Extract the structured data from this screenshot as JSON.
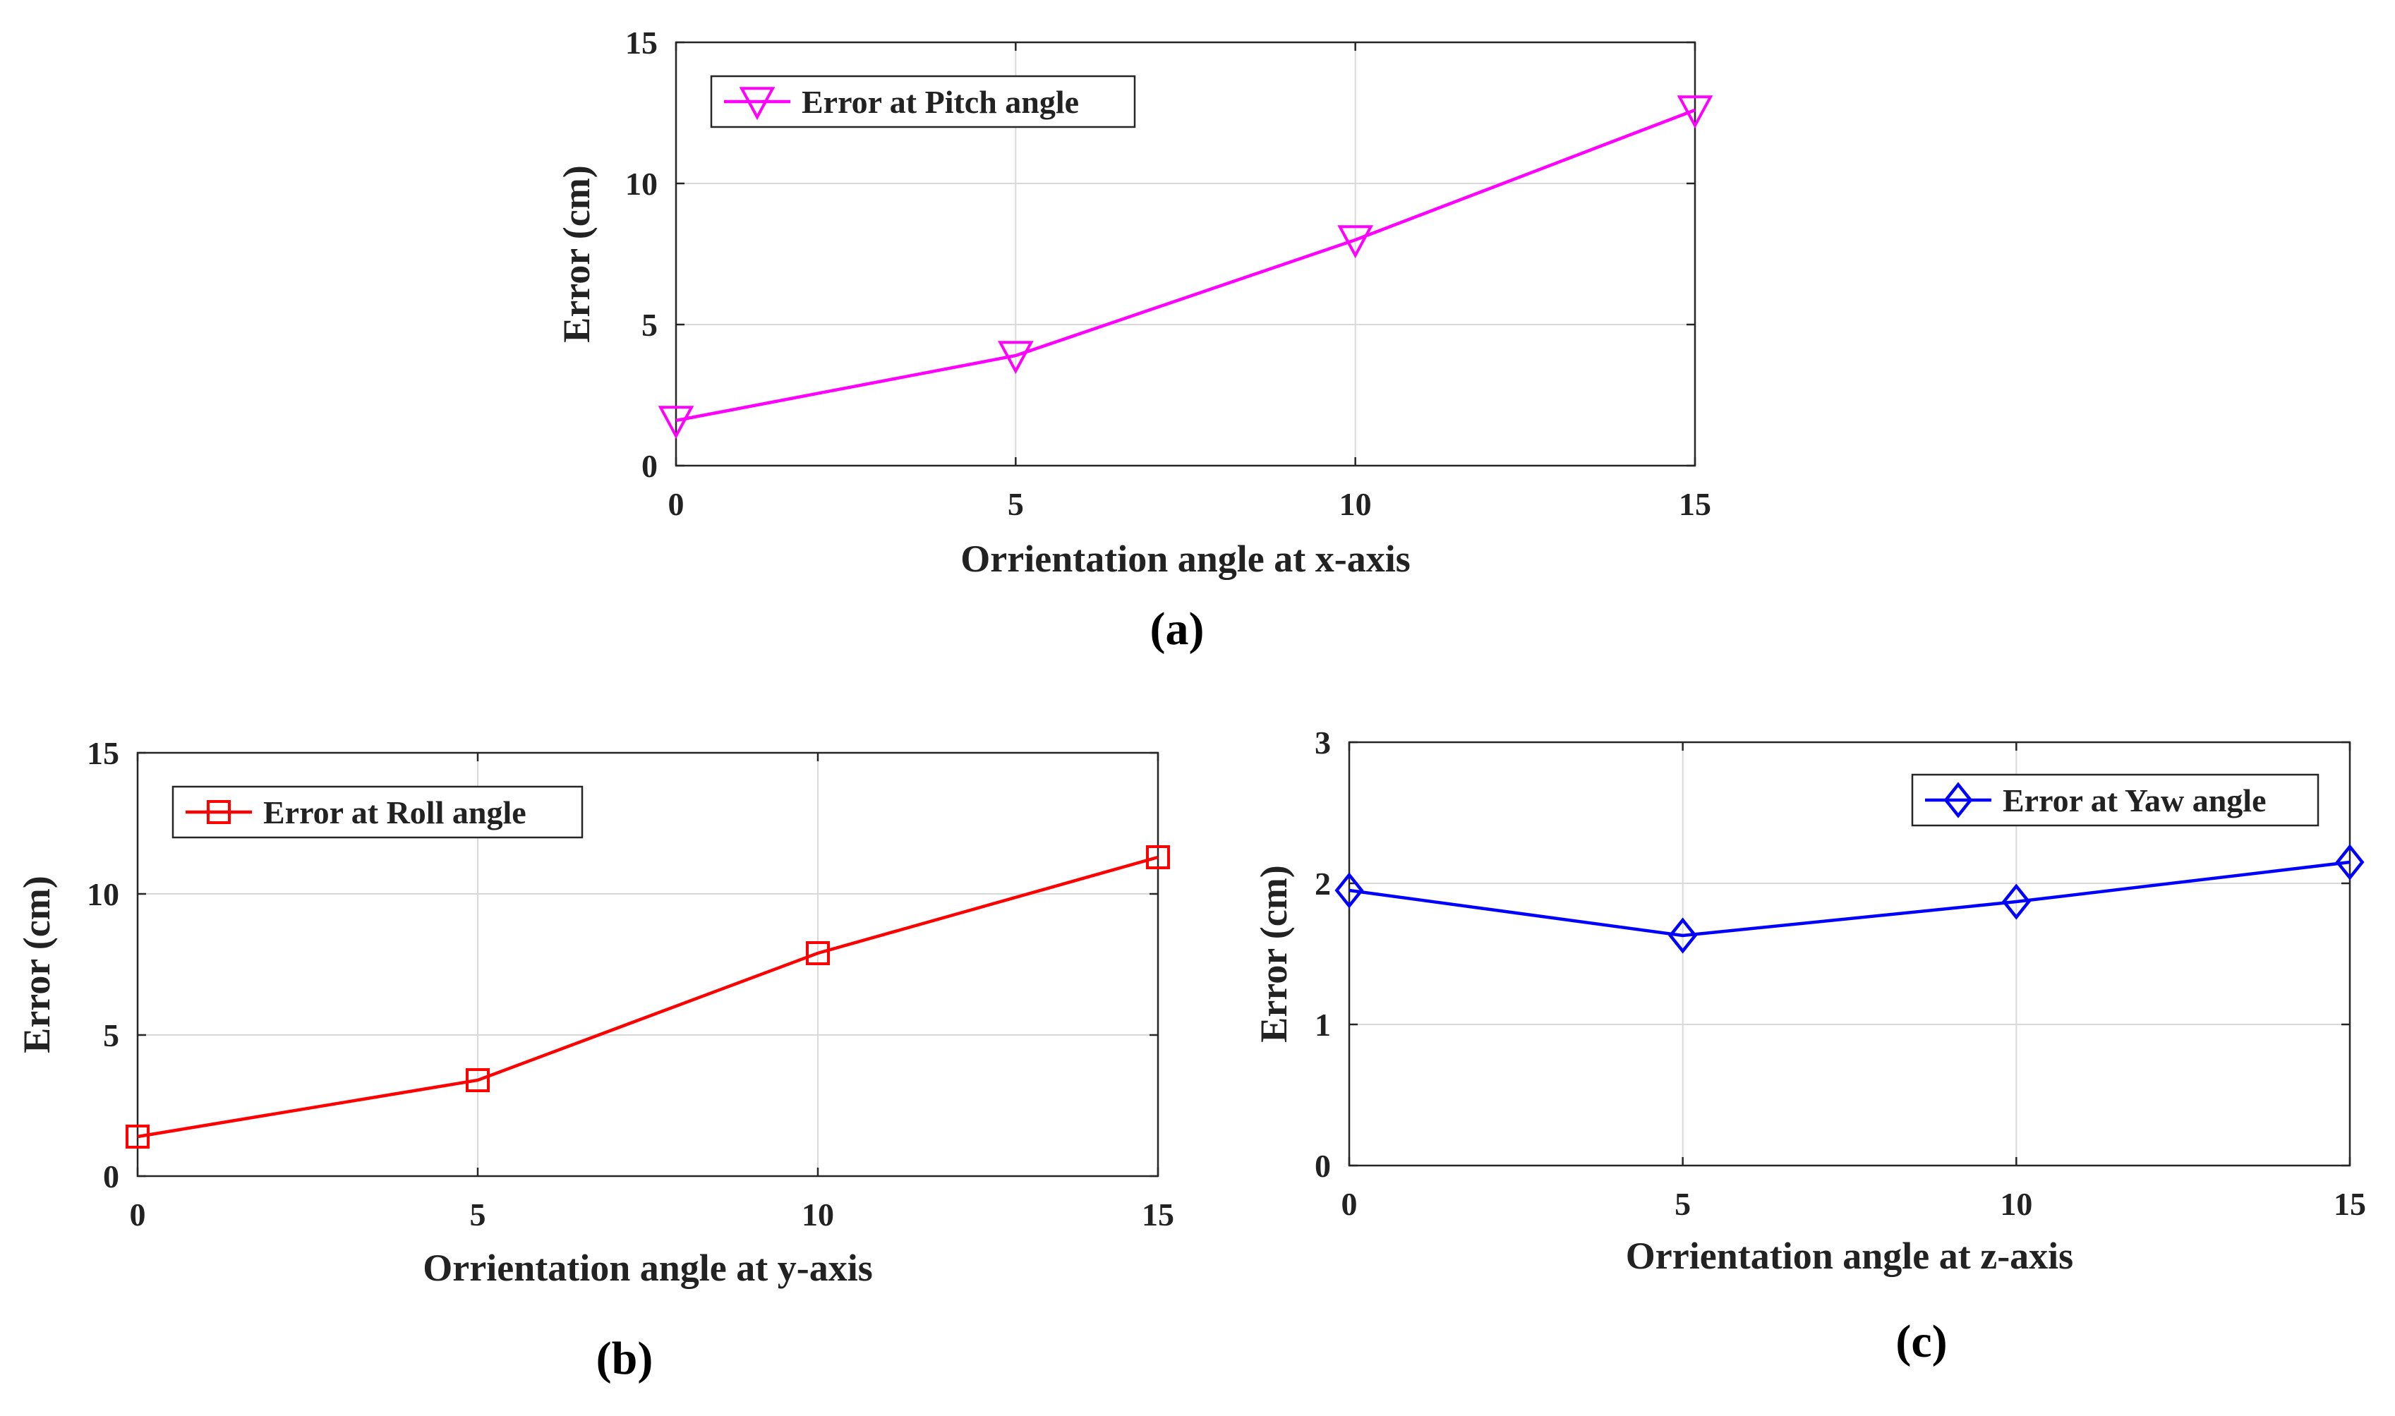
{
  "chart_data": [
    {
      "id": "a",
      "type": "line",
      "caption": "(a)",
      "xlabel": "Orrientation angle at x-axis",
      "ylabel": "Error (cm)",
      "xlim": [
        0,
        15
      ],
      "ylim": [
        0,
        15
      ],
      "xticks": [
        0,
        5,
        10,
        15
      ],
      "yticks": [
        0,
        5,
        10,
        15
      ],
      "grid": true,
      "legend_position": "top-left",
      "series": [
        {
          "name": "Error at Pitch angle",
          "color": "#ff00ff",
          "marker": "triangle-down",
          "x": [
            0,
            5,
            10,
            15
          ],
          "values": [
            1.6,
            3.9,
            8.0,
            12.6
          ]
        }
      ]
    },
    {
      "id": "b",
      "type": "line",
      "caption": "(b)",
      "xlabel": "Orrientation angle at y-axis",
      "ylabel": "Error (cm)",
      "xlim": [
        0,
        15
      ],
      "ylim": [
        0,
        15
      ],
      "xticks": [
        0,
        5,
        10,
        15
      ],
      "yticks": [
        0,
        5,
        10,
        15
      ],
      "grid": true,
      "legend_position": "top-left",
      "series": [
        {
          "name": "Error at Roll angle",
          "color": "#ff0000",
          "marker": "square",
          "x": [
            0,
            5,
            10,
            15
          ],
          "values": [
            1.4,
            3.4,
            7.9,
            11.3
          ]
        }
      ]
    },
    {
      "id": "c",
      "type": "line",
      "caption": "(c)",
      "xlabel": "Orrientation angle at z-axis",
      "ylabel": "Error (cm)",
      "xlim": [
        0,
        15
      ],
      "ylim": [
        0,
        3
      ],
      "xticks": [
        0,
        5,
        10,
        15
      ],
      "yticks": [
        0,
        1,
        2,
        3
      ],
      "grid": true,
      "legend_position": "top-right",
      "series": [
        {
          "name": "Error at Yaw angle",
          "color": "#0000ff",
          "marker": "diamond",
          "x": [
            0,
            5,
            10,
            15
          ],
          "values": [
            1.95,
            1.63,
            1.87,
            2.15
          ]
        }
      ]
    }
  ]
}
